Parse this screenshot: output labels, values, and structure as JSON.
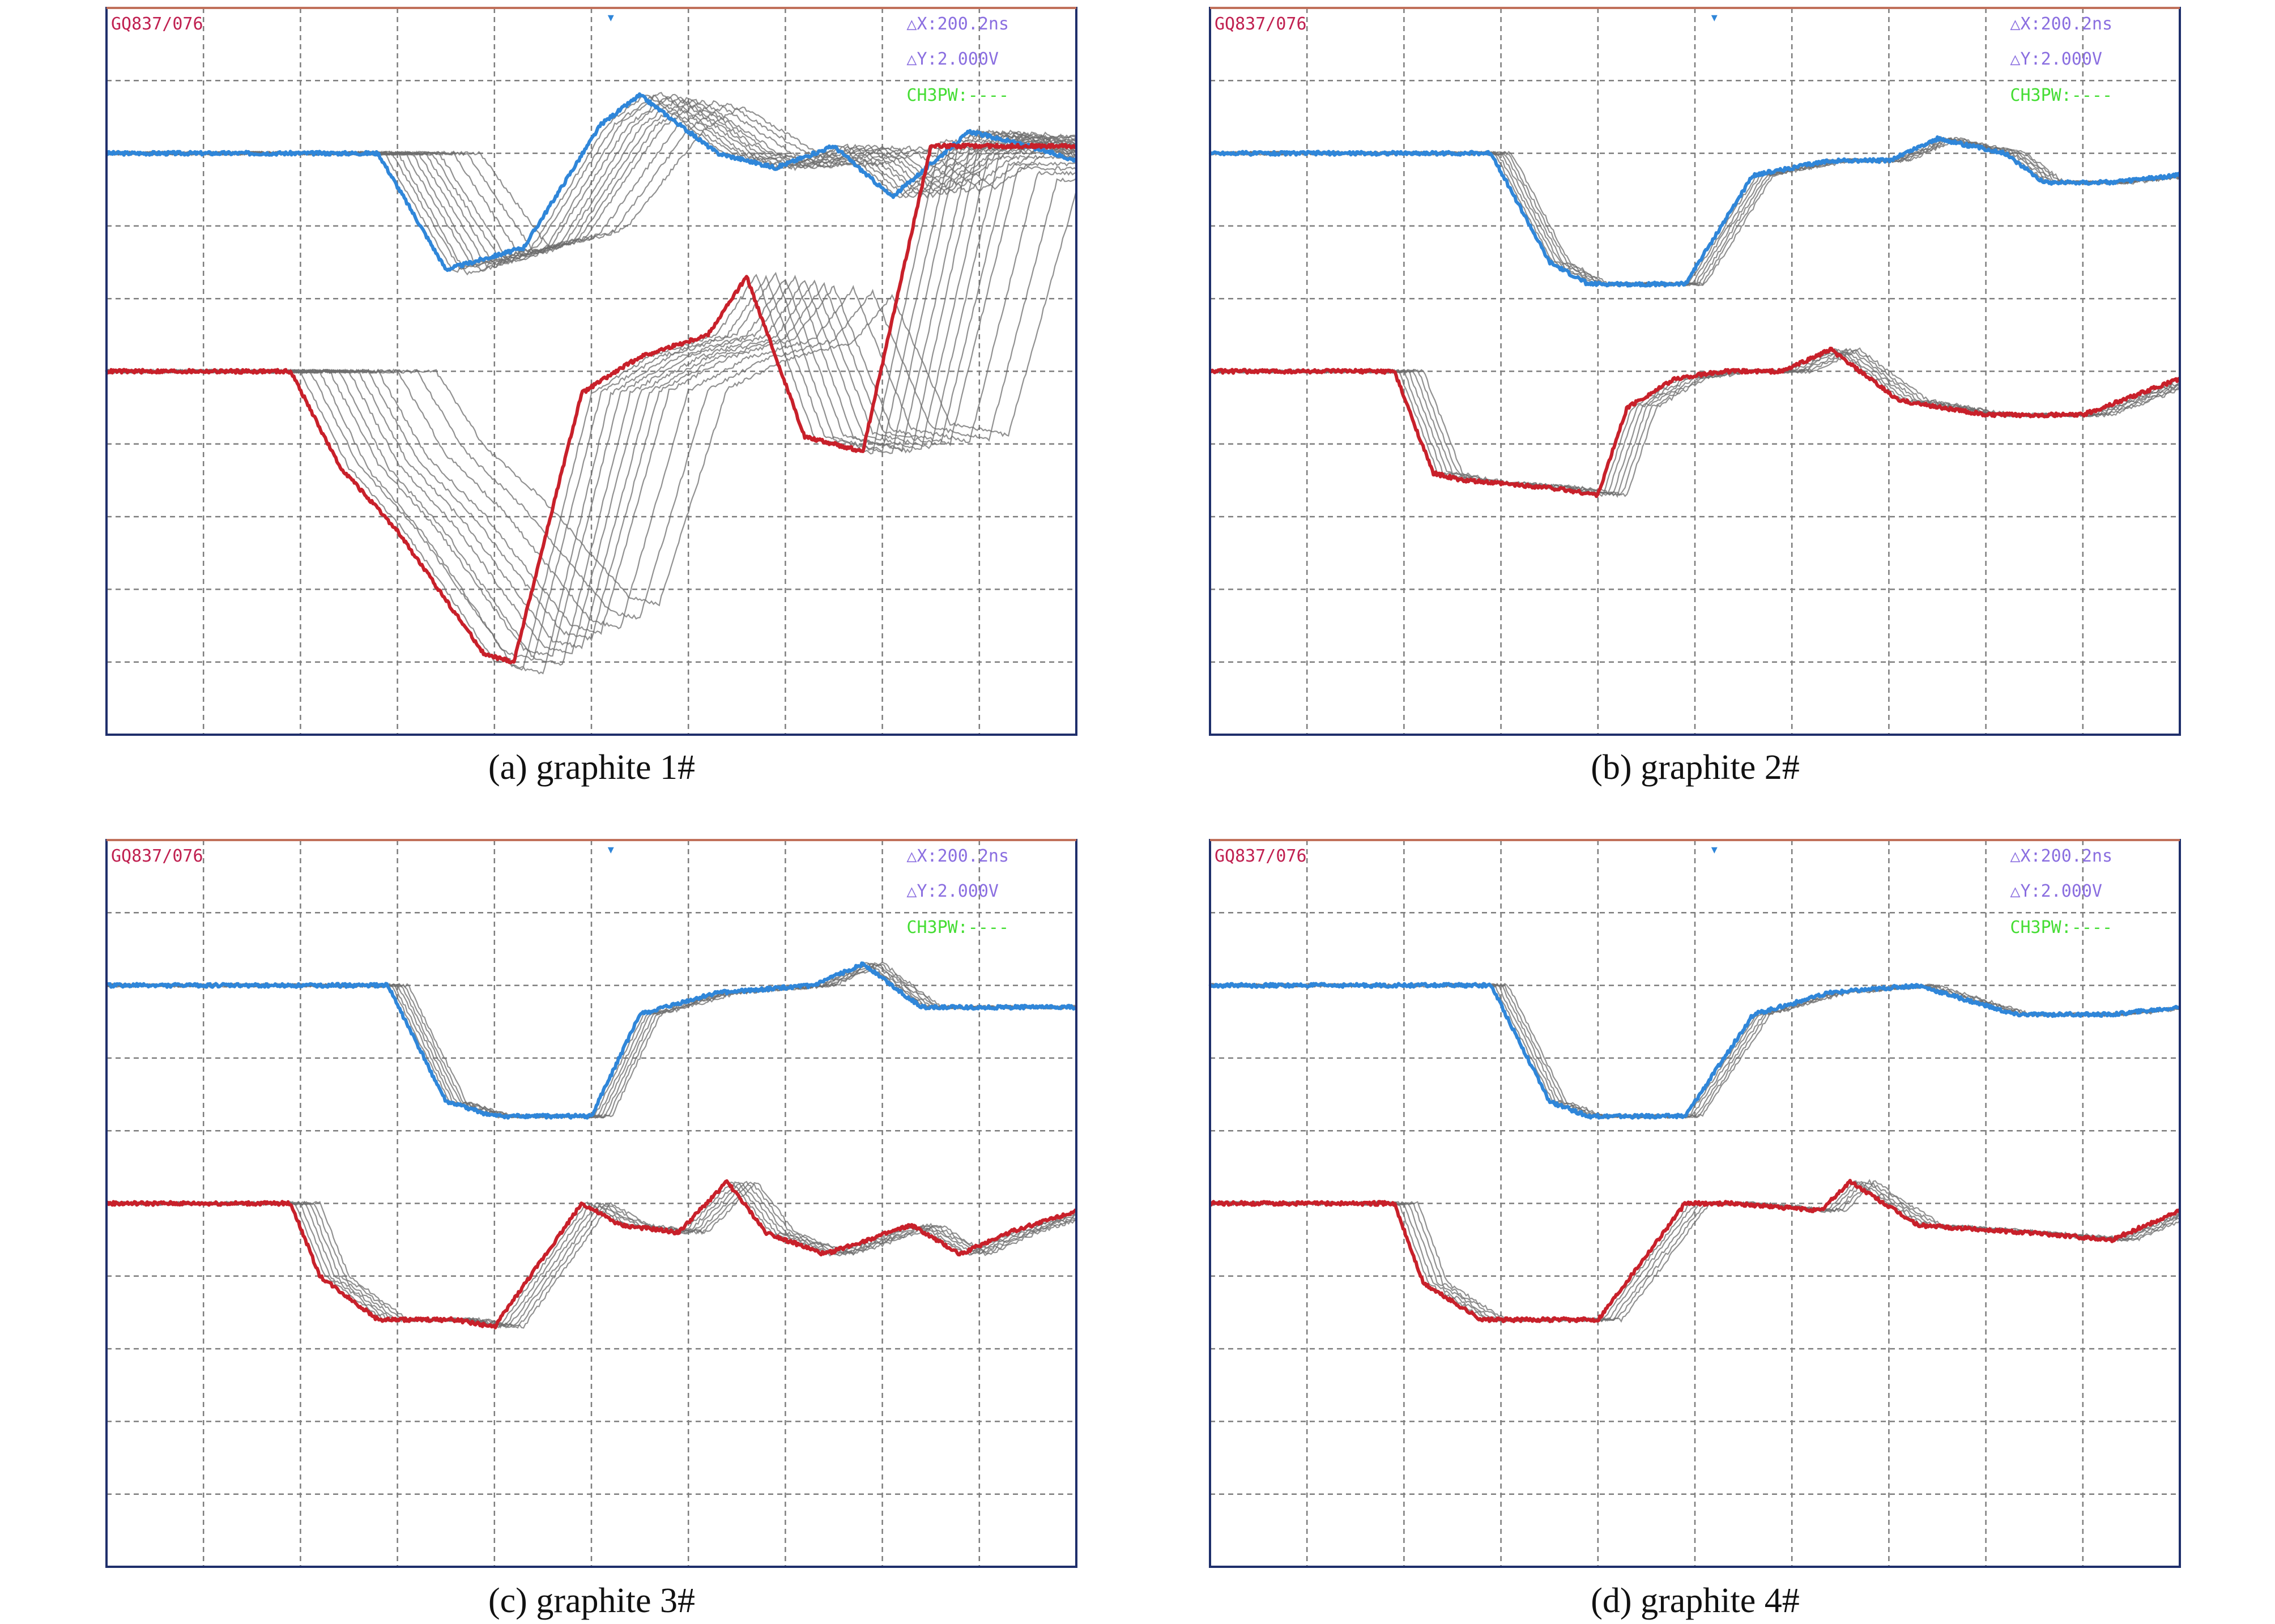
{
  "colors": {
    "frame": "#1f2f6b",
    "frame_top": "#c0705a",
    "grid": "#7d7d7d",
    "ch1": "#2f86d9",
    "ch2": "#c8202a",
    "overlay": "#6c6c6c",
    "label_id": "#c02050",
    "label_delta": "#8a6ee0",
    "label_ch3": "#44dd33"
  },
  "scope_labels": {
    "id": "GQ837/076",
    "dx": "△X:200.2ns",
    "dy": "△Y:2.000V",
    "ch3": "CH3PW:----"
  },
  "grid": {
    "divisions_x": 10,
    "divisions_y": 10
  },
  "panels": [
    {
      "caption": "(a) graphite 1#"
    },
    {
      "caption": "(b) graphite 2#"
    },
    {
      "caption": "(c) graphite 3#"
    },
    {
      "caption": "(d) graphite 4#"
    }
  ],
  "chart_data": [
    {
      "type": "line",
      "title": "(a) graphite 1#",
      "x_range": [
        0,
        10
      ],
      "y_range": [
        0,
        10
      ],
      "series": [
        {
          "color": "blue",
          "x": [
            0,
            2.8,
            3.5,
            4.3,
            5.1,
            5.5,
            6.3,
            6.9,
            7.5,
            8.1,
            8.9,
            9.5,
            10
          ],
          "y": [
            8,
            8,
            6.4,
            6.7,
            8.4,
            8.8,
            8,
            7.8,
            8.1,
            7.4,
            8.3,
            8.1,
            7.9
          ]
        },
        {
          "color": "red",
          "x": [
            0,
            1.9,
            2.4,
            3,
            3.9,
            4.2,
            4.9,
            5.5,
            6.2,
            6.6,
            7.2,
            7.8,
            8.5,
            10
          ],
          "y": [
            5,
            5,
            3.7,
            2.8,
            1.1,
            1,
            4.7,
            5.2,
            5.5,
            6.3,
            4.1,
            3.9,
            8.1,
            8.1
          ]
        }
      ],
      "overlay_count": 12,
      "overlay_offsets_div": [
        0.1,
        0.2,
        0.3,
        0.4,
        0.5,
        0.6,
        0.7,
        0.8,
        0.9,
        1.1,
        1.3,
        1.5
      ],
      "overlay_amplitude_scale": [
        1.02,
        0.99,
        1.04,
        0.98,
        1.01,
        0.97,
        0.95,
        0.92,
        0.9,
        0.88,
        0.85,
        0.8
      ]
    },
    {
      "type": "line",
      "title": "(b) graphite 2#",
      "x_range": [
        0,
        10
      ],
      "y_range": [
        0,
        10
      ],
      "series": [
        {
          "color": "blue",
          "x": [
            0,
            2.9,
            3.5,
            3.9,
            4.9,
            5.6,
            6.4,
            7,
            7.5,
            8.2,
            8.6,
            9.3,
            10
          ],
          "y": [
            8,
            8,
            6.5,
            6.2,
            6.2,
            7.7,
            7.9,
            7.9,
            8.2,
            8,
            7.6,
            7.6,
            7.7
          ]
        },
        {
          "color": "red",
          "x": [
            0,
            1.9,
            2.3,
            2.6,
            3.5,
            4,
            4.3,
            4.8,
            5.3,
            5.9,
            6.4,
            7.1,
            8,
            9,
            10
          ],
          "y": [
            5,
            5,
            3.6,
            3.5,
            3.4,
            3.3,
            4.5,
            4.9,
            5,
            5,
            5.3,
            4.6,
            4.4,
            4.4,
            4.9
          ]
        }
      ],
      "overlay_count": 6,
      "overlay_offsets_div": [
        0.05,
        0.1,
        0.15,
        0.2,
        0.25,
        0.3
      ],
      "overlay_amplitude_scale": [
        1,
        1,
        1,
        1,
        1,
        1
      ]
    },
    {
      "type": "line",
      "title": "(c) graphite 3#",
      "x_range": [
        0,
        10
      ],
      "y_range": [
        0,
        10
      ],
      "series": [
        {
          "color": "blue",
          "x": [
            0,
            2.9,
            3.5,
            4,
            5,
            5.5,
            6.3,
            7.3,
            7.8,
            8.4,
            9.3,
            10
          ],
          "y": [
            8,
            8,
            6.4,
            6.2,
            6.2,
            7.6,
            7.9,
            8,
            8.3,
            7.7,
            7.7,
            7.7
          ]
        },
        {
          "color": "red",
          "x": [
            0,
            1.9,
            2.2,
            2.8,
            3.6,
            4,
            4.9,
            5.3,
            5.9,
            6.4,
            6.8,
            7.4,
            8.3,
            8.8,
            9.3,
            10
          ],
          "y": [
            5,
            5,
            4,
            3.4,
            3.4,
            3.3,
            5,
            4.7,
            4.6,
            5.3,
            4.6,
            4.3,
            4.7,
            4.3,
            4.6,
            4.9
          ]
        }
      ],
      "overlay_count": 6,
      "overlay_offsets_div": [
        0.05,
        0.1,
        0.15,
        0.2,
        0.25,
        0.3
      ],
      "overlay_amplitude_scale": [
        1,
        1,
        1,
        1,
        1,
        1
      ]
    },
    {
      "type": "line",
      "title": "(d) graphite 4#",
      "x_range": [
        0,
        10
      ],
      "y_range": [
        0,
        10
      ],
      "series": [
        {
          "color": "blue",
          "x": [
            0,
            2.9,
            3.5,
            3.9,
            4.9,
            5.6,
            6.4,
            7.3,
            8.3,
            9.3,
            10
          ],
          "y": [
            8,
            8,
            6.4,
            6.2,
            6.2,
            7.6,
            7.9,
            8,
            7.6,
            7.6,
            7.7
          ]
        },
        {
          "color": "red",
          "x": [
            0,
            1.9,
            2.2,
            2.8,
            3.6,
            4,
            4.9,
            5.4,
            6.3,
            6.6,
            7.3,
            8.4,
            9.3,
            10
          ],
          "y": [
            5,
            5,
            3.9,
            3.4,
            3.4,
            3.4,
            5,
            5,
            4.9,
            5.3,
            4.7,
            4.6,
            4.5,
            4.9
          ]
        }
      ],
      "overlay_count": 5,
      "overlay_offsets_div": [
        0.05,
        0.1,
        0.15,
        0.2,
        0.25
      ],
      "overlay_amplitude_scale": [
        1,
        1,
        1,
        1,
        1
      ]
    }
  ]
}
